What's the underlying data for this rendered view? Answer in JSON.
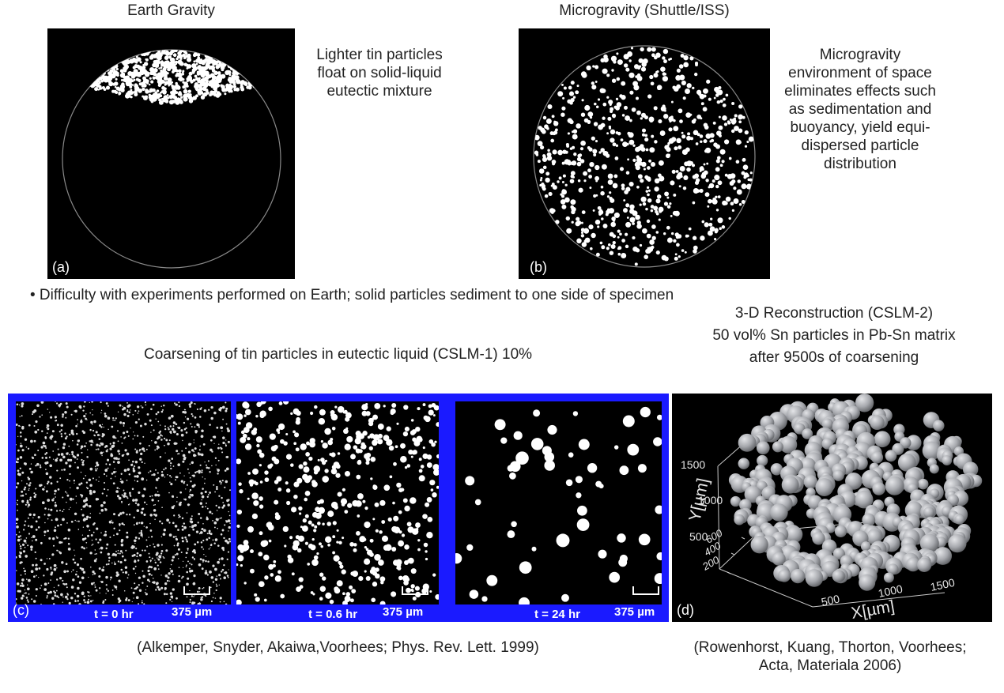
{
  "top": {
    "panel_a": {
      "title": "Earth Gravity",
      "label": "(a)",
      "description": "Lighter tin particles float on solid-liquid eutectic mixture"
    },
    "panel_b": {
      "title": "Microgravity (Shuttle/ISS)",
      "label": "(b)",
      "description": "Microgravity environment of space eliminates effects such as sedimentation and buoyancy, yield equi-dispersed particle distribution"
    },
    "bullet": "• Difficulty with experiments performed on Earth; solid particles sediment to one side of specimen"
  },
  "panel_c": {
    "title": "Coarsening of tin particles in eutectic liquid (CSLM-1) 10%",
    "label": "(c)",
    "frames": [
      {
        "time": "t = 0 hr",
        "scale": "375 µm"
      },
      {
        "time": "t = 0.6 hr",
        "scale": "375 µm"
      },
      {
        "time": "t = 24 hr",
        "scale": "375 µm"
      }
    ],
    "caption": "(Alkemper, Snyder, Akaiwa,Voorhees; Phys. Rev. Lett. 1999)"
  },
  "panel_d": {
    "title_lines": [
      "3-D Reconstruction (CSLM-2)",
      "50 vol% Sn particles in Pb-Sn matrix",
      "after 9500s of coarsening"
    ],
    "label": "(d)",
    "y_axis_label": "Y[µm]",
    "x_axis_label": "X[µm]",
    "y_ticks": [
      "1500",
      "1000",
      "500"
    ],
    "z_ticks": [
      "600",
      "400",
      "200"
    ],
    "x_ticks": [
      "500",
      "1000",
      "1500"
    ],
    "caption_lines": [
      "(Rowenhorst, Kuang, Thorton, Voorhees;",
      "Acta, Materiala 2006)"
    ]
  },
  "colors": {
    "panel_background": "#000000",
    "frame_border": "#1a1aff",
    "particle": "#ffffff",
    "reconstruction": "#a7a9ae"
  }
}
